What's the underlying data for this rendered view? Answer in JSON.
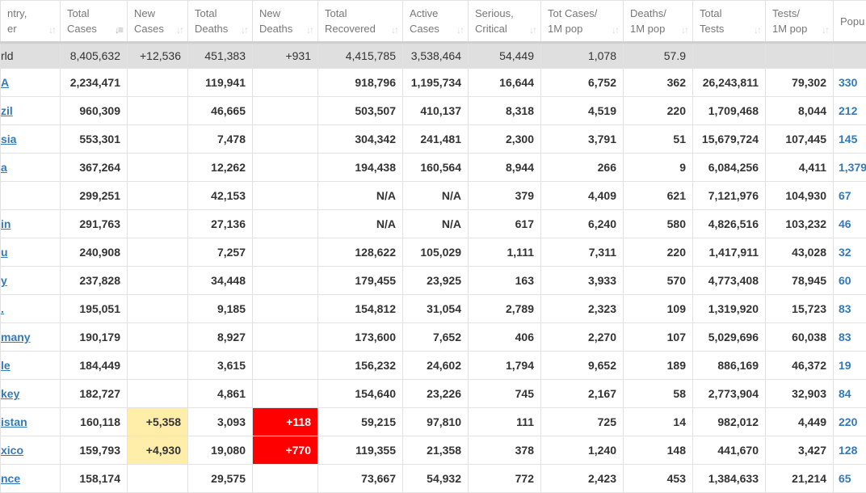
{
  "colors": {
    "new_cases_highlight": "#ffeeaa",
    "new_deaths_highlight": "#ff0000",
    "link": "#337ab7",
    "world_row": "#dfdfdf"
  },
  "headers": [
    {
      "l1": "ntry,",
      "l2": "er"
    },
    {
      "l1": "Total",
      "l2": "Cases",
      "sorted": true
    },
    {
      "l1": "New",
      "l2": "Cases"
    },
    {
      "l1": "Total",
      "l2": "Deaths"
    },
    {
      "l1": "New",
      "l2": "Deaths"
    },
    {
      "l1": "Total",
      "l2": "Recovered"
    },
    {
      "l1": "Active",
      "l2": "Cases"
    },
    {
      "l1": "Serious,",
      "l2": "Critical"
    },
    {
      "l1": "Tot Cases/",
      "l2": "1M pop"
    },
    {
      "l1": "Deaths/",
      "l2": "1M pop"
    },
    {
      "l1": "Total",
      "l2": "Tests"
    },
    {
      "l1": "Tests/",
      "l2": "1M pop"
    },
    {
      "l1": "Popu",
      "l2": ""
    }
  ],
  "world": [
    "rld",
    "8,405,632",
    "+12,536",
    "451,383",
    "+931",
    "4,415,785",
    "3,538,464",
    "54,449",
    "1,078",
    "57.9",
    "",
    "",
    ""
  ],
  "rows": [
    [
      "A",
      "2,234,471",
      "",
      "119,941",
      "",
      "918,796",
      "1,195,734",
      "16,644",
      "6,752",
      "362",
      "26,243,811",
      "79,302",
      "330"
    ],
    [
      "zil",
      "960,309",
      "",
      "46,665",
      "",
      "503,507",
      "410,137",
      "8,318",
      "4,519",
      "220",
      "1,709,468",
      "8,044",
      "212"
    ],
    [
      "sia",
      "553,301",
      "",
      "7,478",
      "",
      "304,342",
      "241,481",
      "2,300",
      "3,791",
      "51",
      "15,679,724",
      "107,445",
      "145"
    ],
    [
      "a",
      "367,264",
      "",
      "12,262",
      "",
      "194,438",
      "160,564",
      "8,944",
      "266",
      "9",
      "6,084,256",
      "4,411",
      "1,379"
    ],
    [
      "",
      "299,251",
      "",
      "42,153",
      "",
      "N/A",
      "N/A",
      "379",
      "4,409",
      "621",
      "7,121,976",
      "104,930",
      "67"
    ],
    [
      "in",
      "291,763",
      "",
      "27,136",
      "",
      "N/A",
      "N/A",
      "617",
      "6,240",
      "580",
      "4,826,516",
      "103,232",
      "46"
    ],
    [
      "u",
      "240,908",
      "",
      "7,257",
      "",
      "128,622",
      "105,029",
      "1,111",
      "7,311",
      "220",
      "1,417,911",
      "43,028",
      "32"
    ],
    [
      "y",
      "237,828",
      "",
      "34,448",
      "",
      "179,455",
      "23,925",
      "163",
      "3,933",
      "570",
      "4,773,408",
      "78,945",
      "60"
    ],
    [
      ".",
      "195,051",
      "",
      "9,185",
      "",
      "154,812",
      "31,054",
      "2,789",
      "2,323",
      "109",
      "1,319,920",
      "15,723",
      "83"
    ],
    [
      "many",
      "190,179",
      "",
      "8,927",
      "",
      "173,600",
      "7,652",
      "406",
      "2,270",
      "107",
      "5,029,696",
      "60,038",
      "83"
    ],
    [
      "le",
      "184,449",
      "",
      "3,615",
      "",
      "156,232",
      "24,602",
      "1,794",
      "9,652",
      "189",
      "886,169",
      "46,372",
      "19"
    ],
    [
      "key",
      "182,727",
      "",
      "4,861",
      "",
      "154,640",
      "23,226",
      "745",
      "2,167",
      "58",
      "2,773,904",
      "32,903",
      "84"
    ],
    [
      "istan",
      "160,118",
      "+5,358",
      "3,093",
      "+118",
      "59,215",
      "97,810",
      "111",
      "725",
      "14",
      "982,012",
      "4,449",
      "220"
    ],
    [
      "xico",
      "159,793",
      "+4,930",
      "19,080",
      "+770",
      "119,355",
      "21,358",
      "378",
      "1,240",
      "148",
      "441,670",
      "3,427",
      "128"
    ],
    [
      "nce",
      "158,174",
      "",
      "29,575",
      "",
      "73,667",
      "54,932",
      "772",
      "2,423",
      "453",
      "1,384,633",
      "21,214",
      "65"
    ]
  ]
}
